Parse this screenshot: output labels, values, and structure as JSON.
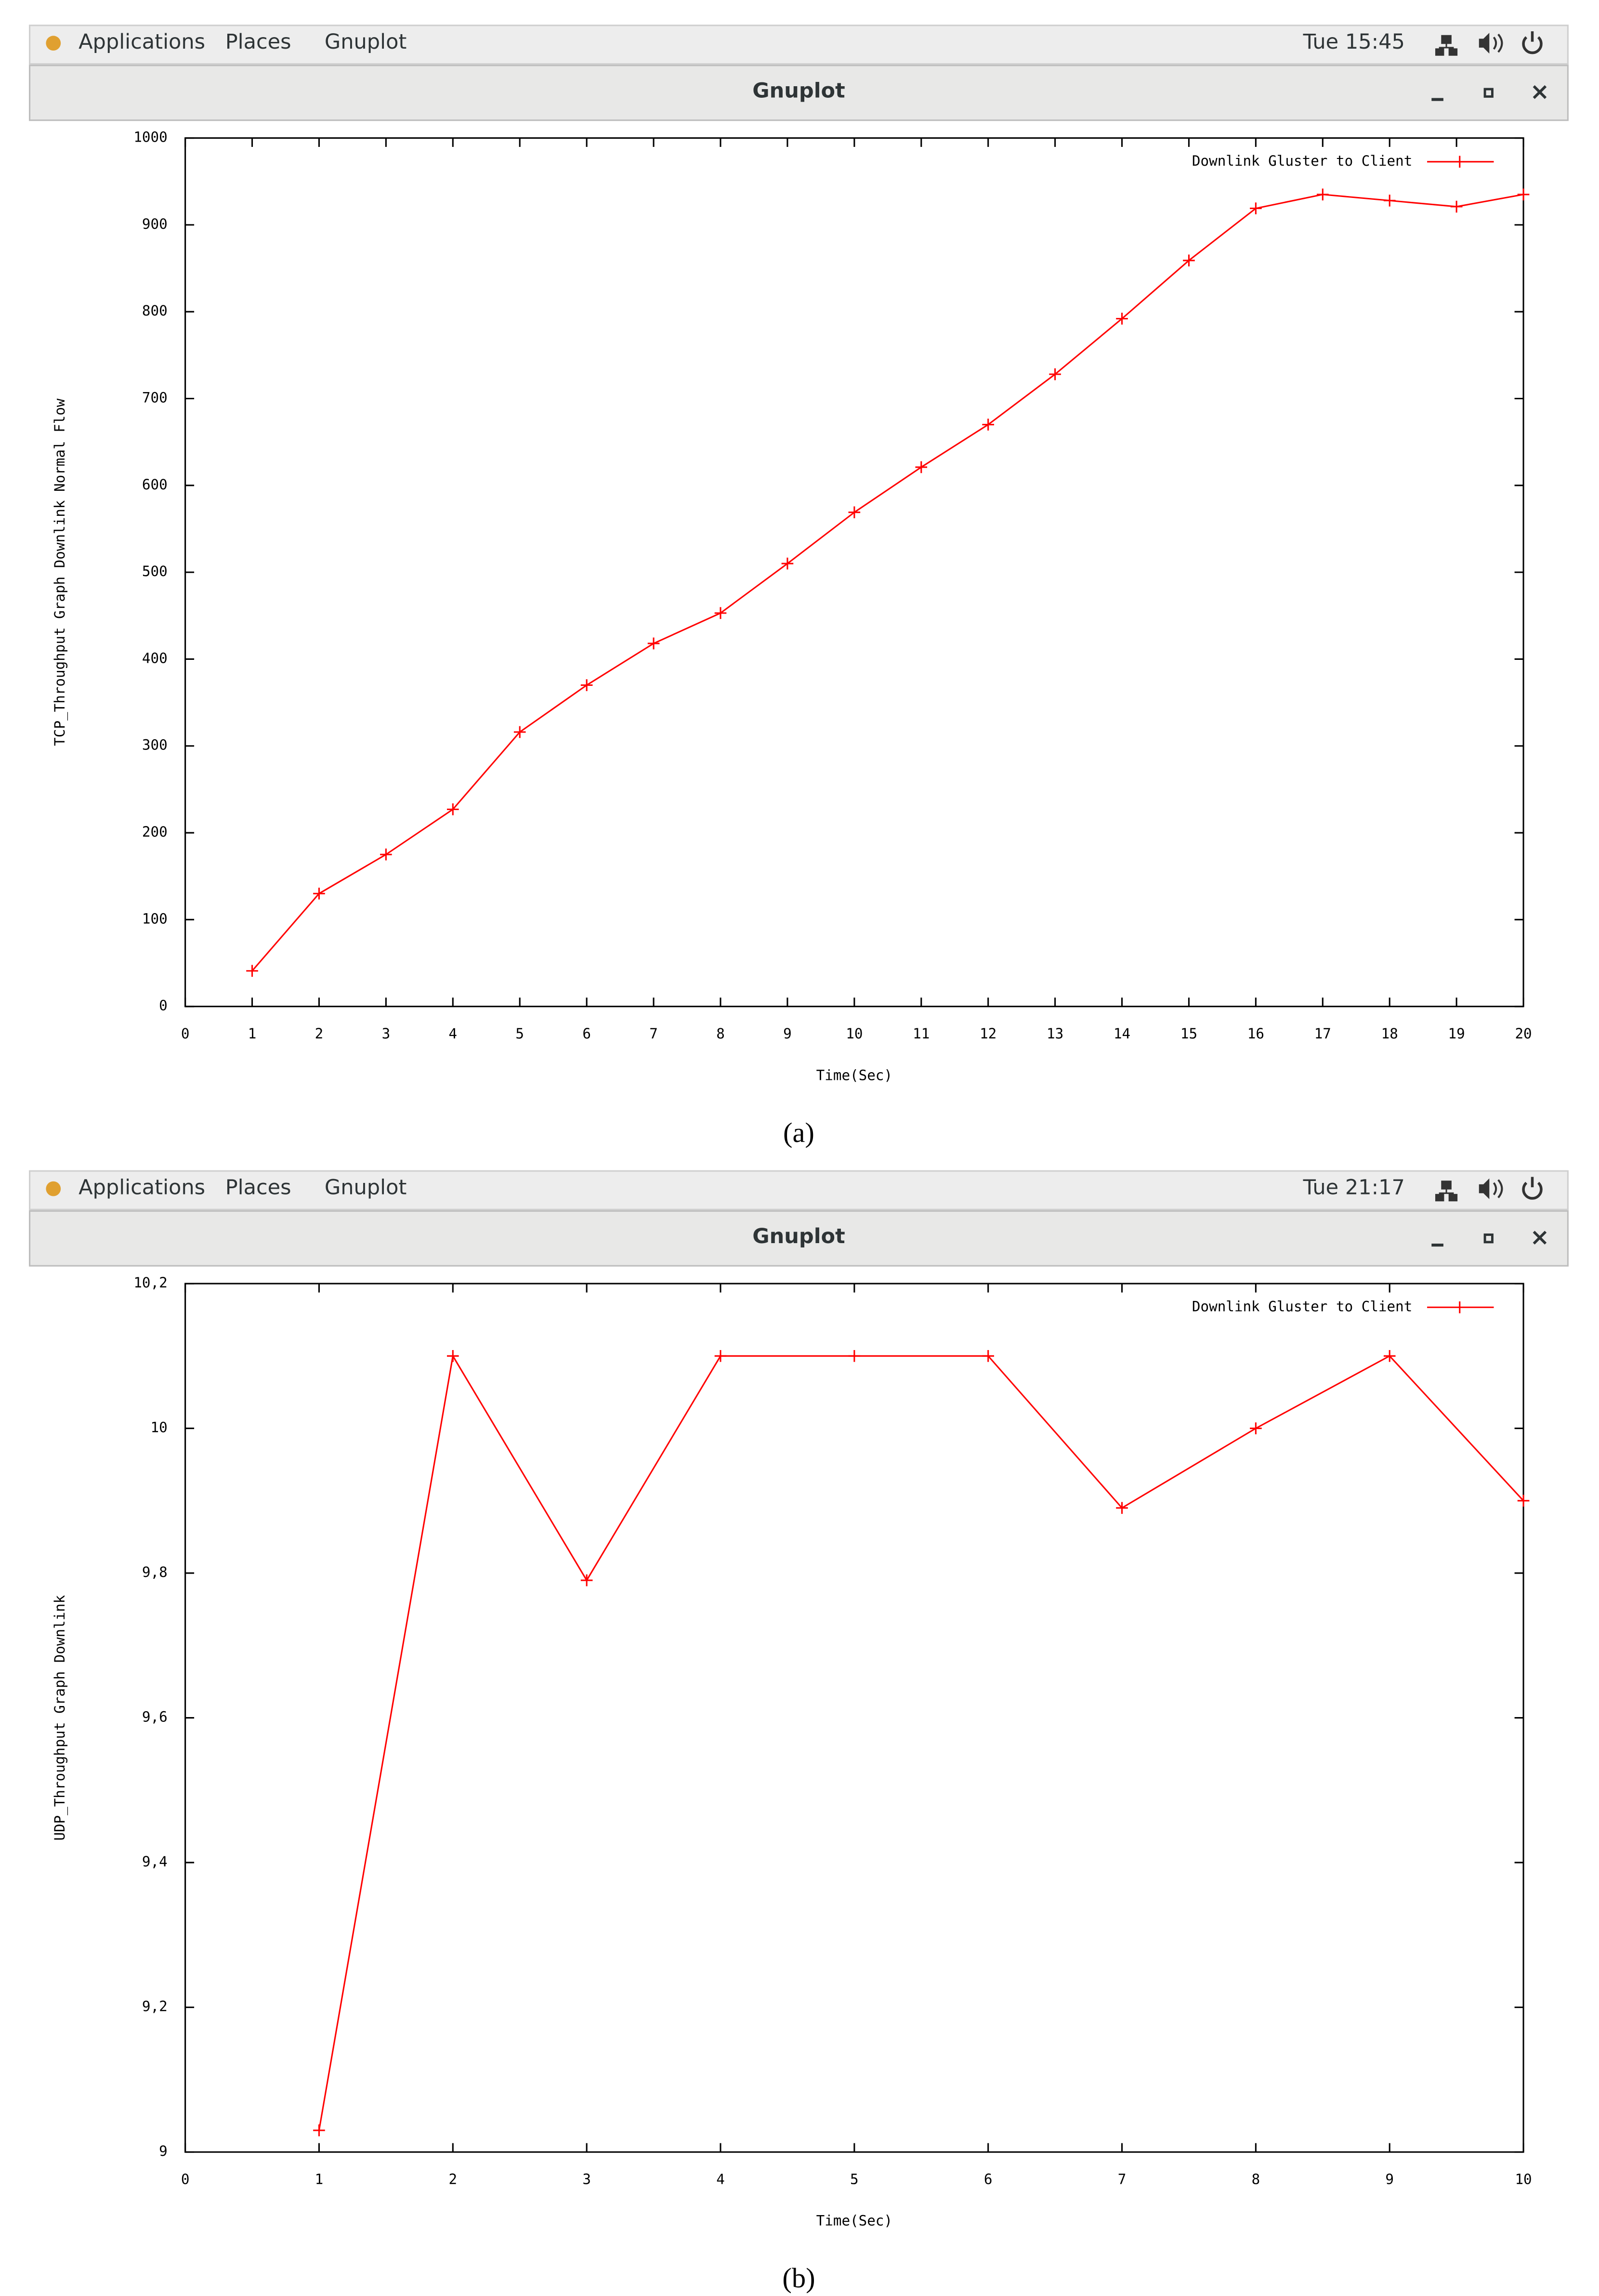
{
  "screens": [
    {
      "menu": [
        "Applications",
        "Places",
        "Gnuplot"
      ],
      "clock": "Tue 15:45",
      "window_title": "Gnuplot",
      "caption": "(a)"
    },
    {
      "menu": [
        "Applications",
        "Places",
        "Gnuplot"
      ],
      "clock": "Tue 21:17",
      "window_title": "Gnuplot",
      "caption": "(b)"
    }
  ],
  "chart_data": [
    {
      "type": "line",
      "x_label": "Time(Sec)",
      "y_label": "TCP_Throughput Graph Downlink Normal Flow",
      "x": [
        1,
        2,
        3,
        4,
        5,
        6,
        7,
        8,
        9,
        10,
        11,
        12,
        13,
        14,
        15,
        16,
        17,
        18,
        19,
        20
      ],
      "series": [
        {
          "name": "Downlink Gluster to Client",
          "color": "#ff0000",
          "values": [
            41,
            130,
            175,
            227,
            316,
            370,
            418,
            453,
            510,
            569,
            621,
            670,
            728,
            792,
            859,
            919,
            935,
            928,
            921,
            935
          ]
        }
      ],
      "xlim": [
        0,
        20
      ],
      "ylim": [
        0,
        1000
      ],
      "xticks": [
        0,
        1,
        2,
        3,
        4,
        5,
        6,
        7,
        8,
        9,
        10,
        11,
        12,
        13,
        14,
        15,
        16,
        17,
        18,
        19,
        20
      ],
      "yticks": [
        0,
        100,
        200,
        300,
        400,
        500,
        600,
        700,
        800,
        900,
        1000
      ],
      "legend": "upper right"
    },
    {
      "type": "line",
      "x_label": "Time(Sec)",
      "y_label": "UDP_Throughput Graph Downlink",
      "x": [
        1,
        2,
        3,
        4,
        5,
        6,
        7,
        8,
        9,
        10
      ],
      "series": [
        {
          "name": "Downlink Gluster to Client",
          "color": "#ff0000",
          "values": [
            9.03,
            10.1,
            9.79,
            10.1,
            10.1,
            10.1,
            9.89,
            10.0,
            10.1,
            9.9
          ]
        }
      ],
      "xlim": [
        0,
        10
      ],
      "ylim": [
        9,
        10.2
      ],
      "xticks": [
        0,
        1,
        2,
        3,
        4,
        5,
        6,
        7,
        8,
        9,
        10
      ],
      "yticks": [
        9,
        {
          "value": 9.2,
          "label": "9,2"
        },
        {
          "value": 9.4,
          "label": "9,4"
        },
        {
          "value": 9.6,
          "label": "9,6"
        },
        {
          "value": 9.8,
          "label": "9,8"
        },
        10,
        {
          "value": 10.2,
          "label": "10,2"
        }
      ],
      "legend": "upper right"
    }
  ]
}
